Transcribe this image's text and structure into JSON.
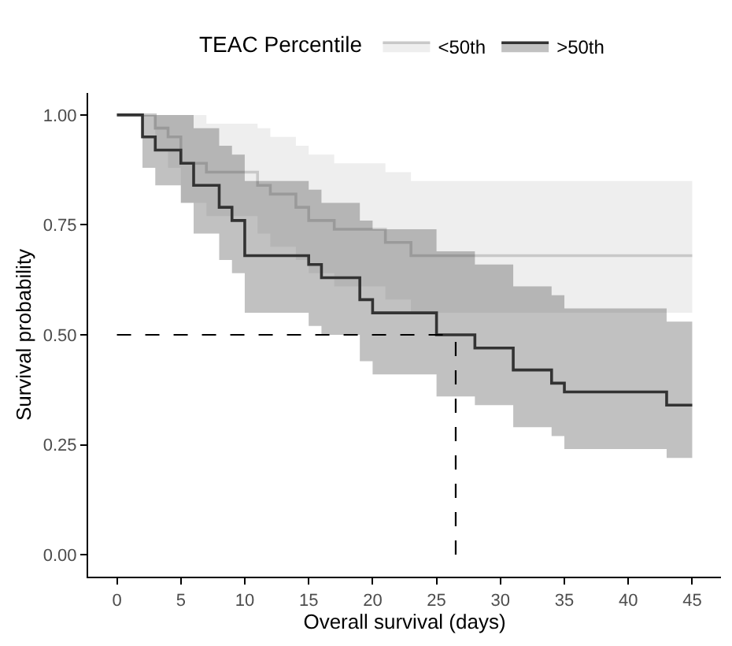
{
  "chart_data": {
    "type": "step",
    "xlabel": "Overall survival (days)",
    "ylabel": "Survival probability",
    "legend_title": "TEAC Percentile",
    "legend": "top",
    "xlim": [
      -2.25,
      47.25
    ],
    "xticks": [
      0,
      5,
      10,
      15,
      20,
      25,
      30,
      35,
      40,
      45
    ],
    "ylim": [
      -0.05,
      1.05
    ],
    "yticks": [
      {
        "value": 0,
        "label": "0.00"
      },
      {
        "value": 0.25,
        "label": "0.25"
      },
      {
        "value": 0.5,
        "label": "0.50"
      },
      {
        "value": 0.75,
        "label": "0.75"
      },
      {
        "value": 1,
        "label": "1.00"
      }
    ],
    "series": [
      {
        "name": "<50th",
        "color": "#c8c8c8",
        "x": [
          0,
          3,
          4,
          5,
          7,
          11,
          12,
          14,
          15,
          17,
          21,
          23,
          45
        ],
        "values": [
          1.0,
          0.97,
          0.95,
          0.89,
          0.87,
          0.84,
          0.82,
          0.79,
          0.76,
          0.74,
          0.71,
          0.68,
          0.68
        ],
        "lower": [
          1.0,
          0.92,
          0.88,
          0.8,
          0.77,
          0.73,
          0.7,
          0.67,
          0.64,
          0.61,
          0.58,
          0.55,
          0.55
        ],
        "upper": [
          1.0,
          1.0,
          1.0,
          1.0,
          0.98,
          0.97,
          0.95,
          0.93,
          0.91,
          0.89,
          0.87,
          0.85,
          0.85
        ]
      },
      {
        "name": ">50th",
        "color": "#333333",
        "x": [
          0,
          2,
          3,
          5,
          6,
          8,
          9,
          10,
          15,
          16,
          19,
          20,
          25,
          28,
          31,
          34,
          35,
          43,
          45
        ],
        "values": [
          1.0,
          0.95,
          0.92,
          0.89,
          0.84,
          0.79,
          0.76,
          0.68,
          0.66,
          0.63,
          0.58,
          0.55,
          0.5,
          0.47,
          0.42,
          0.39,
          0.37,
          0.34,
          0.34
        ],
        "lower": [
          1.0,
          0.88,
          0.84,
          0.8,
          0.73,
          0.67,
          0.64,
          0.55,
          0.52,
          0.5,
          0.44,
          0.41,
          0.36,
          0.34,
          0.29,
          0.27,
          0.24,
          0.22,
          0.22
        ],
        "upper": [
          1.0,
          1.0,
          1.0,
          1.0,
          0.97,
          0.93,
          0.91,
          0.85,
          0.83,
          0.8,
          0.76,
          0.74,
          0.69,
          0.66,
          0.61,
          0.59,
          0.56,
          0.53,
          0.53
        ]
      }
    ],
    "ref_lines": [
      {
        "axis": "y",
        "value": 0.5,
        "color": "#000000",
        "line_style": "dashed"
      },
      {
        "axis": "x",
        "value": 26.5,
        "color": "#000000",
        "line_style": "dashed"
      }
    ]
  }
}
